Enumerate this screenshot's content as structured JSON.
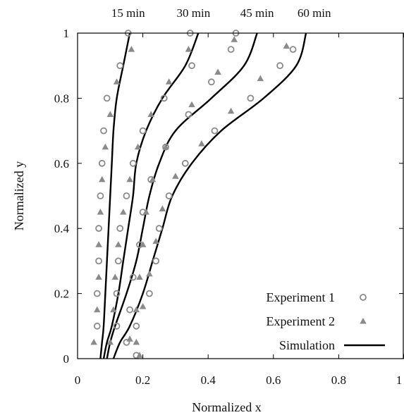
{
  "chart_data": {
    "type": "scatter",
    "xlabel": "Normalized x",
    "ylabel": "Normalized y",
    "xlim": [
      0,
      1
    ],
    "ylim": [
      0,
      1
    ],
    "xticks": [
      {
        "value": 0,
        "label": "0"
      },
      {
        "value": 0.2,
        "label": "0.2"
      },
      {
        "value": 0.4,
        "label": "0.4"
      },
      {
        "value": 0.6,
        "label": "0.6"
      },
      {
        "value": 0.8,
        "label": "0.8"
      },
      {
        "value": 1,
        "label": "1"
      }
    ],
    "yticks": [
      {
        "value": 0,
        "label": "0"
      },
      {
        "value": 0.2,
        "label": "0.2"
      },
      {
        "value": 0.4,
        "label": "0.4"
      },
      {
        "value": 0.6,
        "label": "0.6"
      },
      {
        "value": 0.8,
        "label": "0.8"
      },
      {
        "value": 1,
        "label": "1"
      }
    ],
    "grid": false,
    "legend_position": "bottom-right",
    "legend": [
      {
        "label": "Experiment 1",
        "marker": "open-circle",
        "color": "#8a8a8a"
      },
      {
        "label": "Experiment 2",
        "marker": "filled-triangle",
        "color": "#8a8a8a"
      },
      {
        "label": "Simulation",
        "marker": "solid-line",
        "color": "#000000"
      }
    ],
    "time_labels": [
      {
        "label": "15 min",
        "x": 0.155
      },
      {
        "label": "30 min",
        "x": 0.355
      },
      {
        "label": "45 min",
        "x": 0.55
      },
      {
        "label": "60 min",
        "x": 0.725
      }
    ],
    "series": [
      {
        "name": "Simulation",
        "time": "15 min",
        "points": [
          [
            0.07,
            0
          ],
          [
            0.075,
            0.05
          ],
          [
            0.08,
            0.1
          ],
          [
            0.085,
            0.2
          ],
          [
            0.09,
            0.3
          ],
          [
            0.095,
            0.4
          ],
          [
            0.1,
            0.5
          ],
          [
            0.105,
            0.6
          ],
          [
            0.11,
            0.7
          ],
          [
            0.12,
            0.8
          ],
          [
            0.14,
            0.9
          ],
          [
            0.16,
            1.0
          ]
        ]
      },
      {
        "name": "Simulation",
        "time": "30 min",
        "points": [
          [
            0.08,
            0
          ],
          [
            0.09,
            0.05
          ],
          [
            0.105,
            0.1
          ],
          [
            0.125,
            0.2
          ],
          [
            0.14,
            0.3
          ],
          [
            0.155,
            0.4
          ],
          [
            0.17,
            0.5
          ],
          [
            0.18,
            0.6
          ],
          [
            0.21,
            0.7
          ],
          [
            0.26,
            0.8
          ],
          [
            0.33,
            0.9
          ],
          [
            0.37,
            1.0
          ]
        ]
      },
      {
        "name": "Simulation",
        "time": "45 min",
        "points": [
          [
            0.09,
            0
          ],
          [
            0.1,
            0.05
          ],
          [
            0.115,
            0.1
          ],
          [
            0.15,
            0.2
          ],
          [
            0.18,
            0.3
          ],
          [
            0.2,
            0.4
          ],
          [
            0.22,
            0.5
          ],
          [
            0.25,
            0.6
          ],
          [
            0.3,
            0.7
          ],
          [
            0.41,
            0.8
          ],
          [
            0.51,
            0.9
          ],
          [
            0.55,
            1.0
          ]
        ]
      },
      {
        "name": "Simulation",
        "time": "60 min",
        "points": [
          [
            0.11,
            0
          ],
          [
            0.13,
            0.05
          ],
          [
            0.16,
            0.1
          ],
          [
            0.2,
            0.2
          ],
          [
            0.23,
            0.3
          ],
          [
            0.26,
            0.4
          ],
          [
            0.29,
            0.5
          ],
          [
            0.35,
            0.6
          ],
          [
            0.44,
            0.7
          ],
          [
            0.57,
            0.8
          ],
          [
            0.67,
            0.9
          ],
          [
            0.7,
            1.0
          ]
        ]
      },
      {
        "name": "Experiment 1",
        "time": "15 min",
        "points": [
          [
            0.06,
            0.1
          ],
          [
            0.06,
            0.2
          ],
          [
            0.065,
            0.3
          ],
          [
            0.065,
            0.4
          ],
          [
            0.07,
            0.5
          ],
          [
            0.075,
            0.6
          ],
          [
            0.08,
            0.7
          ],
          [
            0.09,
            0.8
          ],
          [
            0.13,
            0.9
          ],
          [
            0.155,
            1.0
          ]
        ]
      },
      {
        "name": "Experiment 2",
        "time": "15 min",
        "points": [
          [
            0.05,
            0.05
          ],
          [
            0.06,
            0.15
          ],
          [
            0.065,
            0.25
          ],
          [
            0.065,
            0.35
          ],
          [
            0.07,
            0.45
          ],
          [
            0.075,
            0.55
          ],
          [
            0.085,
            0.65
          ],
          [
            0.1,
            0.75
          ],
          [
            0.12,
            0.85
          ],
          [
            0.165,
            0.95
          ]
        ]
      },
      {
        "name": "Experiment 1",
        "time": "30 min",
        "points": [
          [
            0.18,
            0.01
          ],
          [
            0.12,
            0.1
          ],
          [
            0.12,
            0.2
          ],
          [
            0.125,
            0.3
          ],
          [
            0.13,
            0.4
          ],
          [
            0.15,
            0.5
          ],
          [
            0.17,
            0.6
          ],
          [
            0.2,
            0.7
          ],
          [
            0.265,
            0.8
          ],
          [
            0.35,
            0.9
          ],
          [
            0.345,
            1.0
          ]
        ]
      },
      {
        "name": "Experiment 2",
        "time": "30 min",
        "points": [
          [
            0.19,
            0.01
          ],
          [
            0.1,
            0.05
          ],
          [
            0.11,
            0.15
          ],
          [
            0.115,
            0.25
          ],
          [
            0.125,
            0.35
          ],
          [
            0.14,
            0.45
          ],
          [
            0.16,
            0.55
          ],
          [
            0.185,
            0.65
          ],
          [
            0.225,
            0.75
          ],
          [
            0.28,
            0.85
          ],
          [
            0.34,
            0.95
          ]
        ]
      },
      {
        "name": "Experiment 1",
        "time": "45 min",
        "points": [
          [
            0.15,
            0.05
          ],
          [
            0.16,
            0.15
          ],
          [
            0.17,
            0.25
          ],
          [
            0.19,
            0.35
          ],
          [
            0.2,
            0.45
          ],
          [
            0.225,
            0.55
          ],
          [
            0.27,
            0.65
          ],
          [
            0.34,
            0.75
          ],
          [
            0.41,
            0.85
          ],
          [
            0.47,
            0.95
          ],
          [
            0.485,
            1.0
          ]
        ]
      },
      {
        "name": "Experiment 2",
        "time": "45 min",
        "points": [
          [
            0.18,
            0.05
          ],
          [
            0.18,
            0.15
          ],
          [
            0.19,
            0.25
          ],
          [
            0.2,
            0.35
          ],
          [
            0.21,
            0.45
          ],
          [
            0.23,
            0.55
          ],
          [
            0.27,
            0.65
          ],
          [
            0.35,
            0.78
          ],
          [
            0.43,
            0.88
          ],
          [
            0.48,
            0.98
          ]
        ]
      },
      {
        "name": "Experiment 1",
        "time": "60 min",
        "points": [
          [
            0.18,
            0.1
          ],
          [
            0.22,
            0.2
          ],
          [
            0.24,
            0.3
          ],
          [
            0.25,
            0.4
          ],
          [
            0.28,
            0.5
          ],
          [
            0.33,
            0.6
          ],
          [
            0.42,
            0.7
          ],
          [
            0.53,
            0.8
          ],
          [
            0.62,
            0.9
          ],
          [
            0.66,
            0.95
          ]
        ]
      },
      {
        "name": "Experiment 2",
        "time": "60 min",
        "points": [
          [
            0.16,
            0.06
          ],
          [
            0.2,
            0.16
          ],
          [
            0.22,
            0.26
          ],
          [
            0.24,
            0.36
          ],
          [
            0.26,
            0.46
          ],
          [
            0.3,
            0.56
          ],
          [
            0.38,
            0.66
          ],
          [
            0.47,
            0.76
          ],
          [
            0.56,
            0.86
          ],
          [
            0.64,
            0.96
          ]
        ]
      }
    ]
  }
}
